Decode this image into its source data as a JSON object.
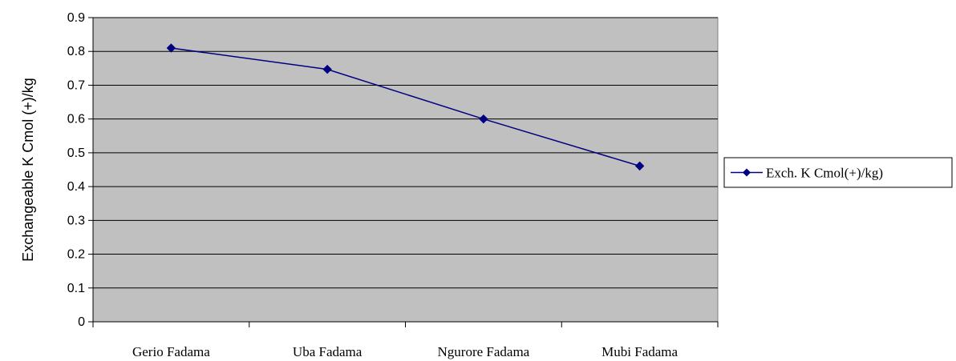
{
  "chart_data": {
    "type": "line",
    "categories": [
      "Gerio Fadama",
      "Uba Fadama",
      "Ngurore Fadama",
      "Mubi Fadama"
    ],
    "series": [
      {
        "name": "Exch. K Cmol(+)/kg)",
        "values": [
          0.81,
          0.747,
          0.6,
          0.461
        ],
        "color": "#000080",
        "marker": "diamond"
      }
    ],
    "title": "",
    "xlabel": "",
    "ylabel": "Exchangeable K Cmol (+)/kg",
    "ylim": [
      0,
      0.9
    ],
    "yticks": [
      "0",
      "0.1",
      "0.2",
      "0.3",
      "0.4",
      "0.5",
      "0.6",
      "0.7",
      "0.8",
      "0.9"
    ],
    "grid": true,
    "legend_position": "right",
    "plot_background": "#c0c0c0"
  }
}
